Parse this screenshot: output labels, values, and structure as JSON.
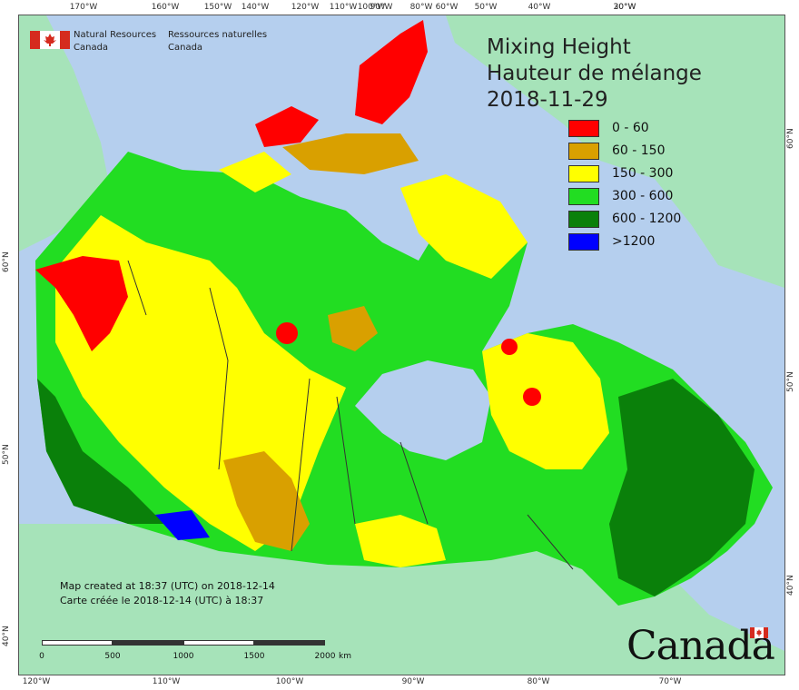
{
  "agency": {
    "name_en_line1": "Natural Resources",
    "name_en_line2": "Canada",
    "name_fr_line1": "Ressources naturelles",
    "name_fr_line2": "Canada"
  },
  "title": {
    "en": "Mixing Height",
    "fr": "Hauteur de mélange",
    "date": "2018-11-29"
  },
  "legend": [
    {
      "label": "0 - 60",
      "color": "#ff0000"
    },
    {
      "label": "60 - 150",
      "color": "#d9a000"
    },
    {
      "label": "150 - 300",
      "color": "#ffff00"
    },
    {
      "label": "300 - 600",
      "color": "#22dd22"
    },
    {
      "label": "600 - 1200",
      "color": "#0a800a"
    },
    {
      "label": ">1200",
      "color": "#0000ff"
    }
  ],
  "credit": {
    "en": "Map created at 18:37 (UTC) on 2018-12-14",
    "fr": "Carte créée le 2018-12-14 (UTC) à 18:37"
  },
  "scale": {
    "labels": [
      "0",
      "500",
      "1000",
      "1500",
      "2000"
    ],
    "unit": "km"
  },
  "graticule": {
    "top": [
      "170°W",
      "160°W",
      "150°W",
      "140°W",
      "120°W",
      "110°W",
      "100°W",
      "90°W",
      "80°W",
      "60°W",
      "50°W",
      "40°W",
      "30°W",
      "20°W"
    ],
    "bottom": [
      "120°W",
      "110°W",
      "100°W",
      "90°W",
      "80°W",
      "70°W"
    ],
    "left": [
      "60°N",
      "50°N",
      "40°N"
    ],
    "right": [
      "60°N",
      "50°N",
      "40°N"
    ]
  },
  "wordmark": "Canada",
  "colors": {
    "ocean": "#b5cfee",
    "foreign_land": "#a6e3b9",
    "boundary": "#333333"
  }
}
